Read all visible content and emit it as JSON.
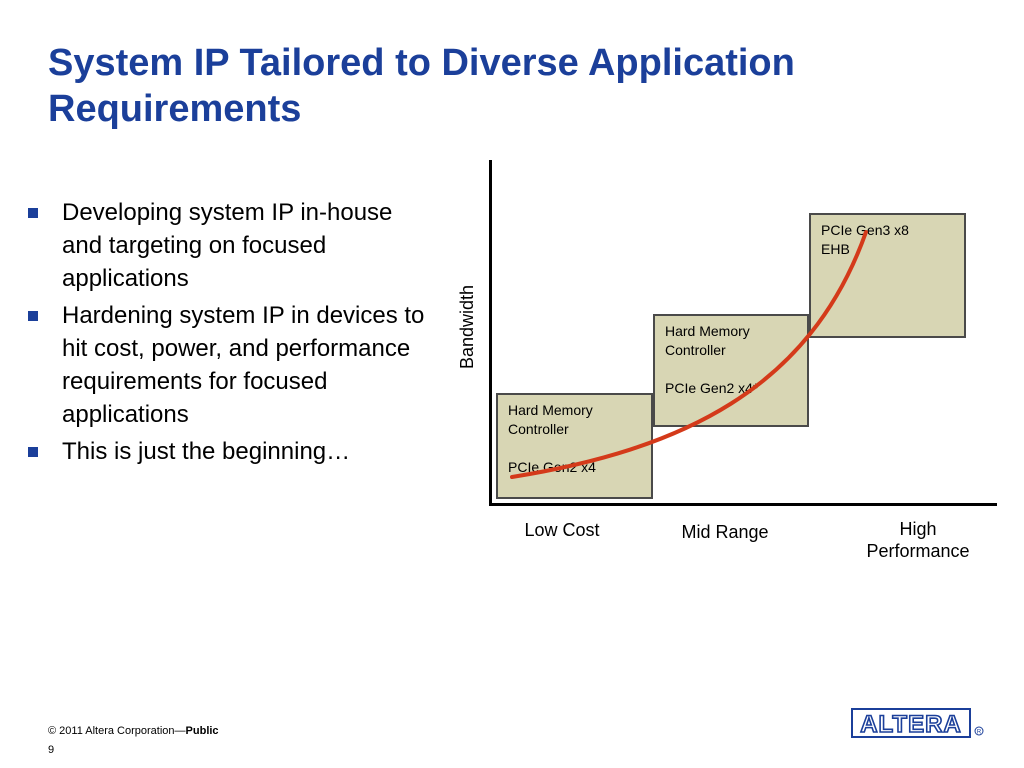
{
  "slide": {
    "title_line1": "System IP Tailored to Diverse Application",
    "title_line2": "Requirements"
  },
  "bullets": [
    {
      "text": "Developing system IP in-house and targeting on focused applications"
    },
    {
      "text": "Hardening system IP in devices to hit cost, power, and performance requirements for focused applications"
    },
    {
      "text": "This is just the beginning…"
    }
  ],
  "diagram": {
    "y_axis_label": "Bandwidth",
    "categories": [
      "Low Cost",
      "Mid Range",
      "High",
      "Performance"
    ],
    "boxes": [
      {
        "line1": "Hard Memory",
        "line2": "Controller",
        "line3": "PCIe Gen2 x4"
      },
      {
        "line1": "Hard Memory",
        "line2": "Controller",
        "line3": "PCIe Gen2 x4*"
      },
      {
        "line1": "PCIe Gen3 x8",
        "line2": "EHB"
      }
    ],
    "colors": {
      "box_fill": "#d8d6b4",
      "curve": "#d43a1a",
      "title": "#1b3f9a"
    }
  },
  "footer": {
    "copyright": "© 2011 Altera Corporation—",
    "classification": "Public",
    "page_number": "9"
  },
  "logo": {
    "text": "ALTERA",
    "icon": "altera-logo-icon"
  }
}
